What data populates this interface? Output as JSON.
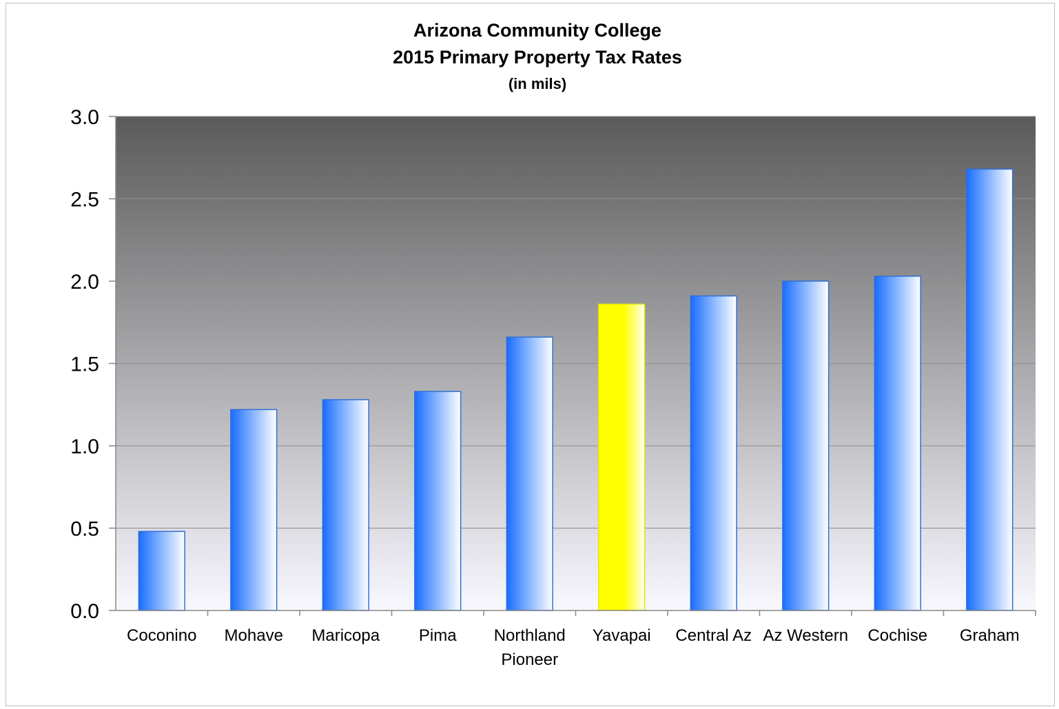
{
  "chart_data": {
    "type": "bar",
    "title": [
      "Arizona Community College",
      "2015 Primary Property Tax Rates"
    ],
    "subtitle": "(in mils)",
    "xlabel": "",
    "ylabel": "",
    "ylim": [
      0,
      3.0
    ],
    "yticks": [
      "0.0",
      "0.5",
      "1.0",
      "1.5",
      "2.0",
      "2.5",
      "3.0"
    ],
    "grid": true,
    "legend": "none",
    "categories": [
      [
        "Coconino"
      ],
      [
        "Mohave"
      ],
      [
        "Maricopa"
      ],
      [
        "Pima"
      ],
      [
        "Northland",
        "Pioneer"
      ],
      [
        "Yavapai"
      ],
      [
        "Central Az"
      ],
      [
        "Az Western"
      ],
      [
        "Cochise"
      ],
      [
        "Graham"
      ]
    ],
    "values": [
      0.48,
      1.22,
      1.28,
      1.33,
      1.66,
      1.86,
      1.91,
      2.0,
      2.03,
      2.68
    ],
    "highlight_category": "Yavapai",
    "colors": {
      "bar": "#1a6cff",
      "bar_highlight": "#ffff00",
      "plot_bg_top": "#5a5a5a",
      "plot_bg_bottom": "#f8f8ff",
      "gridline": "#8c8c8c"
    }
  }
}
